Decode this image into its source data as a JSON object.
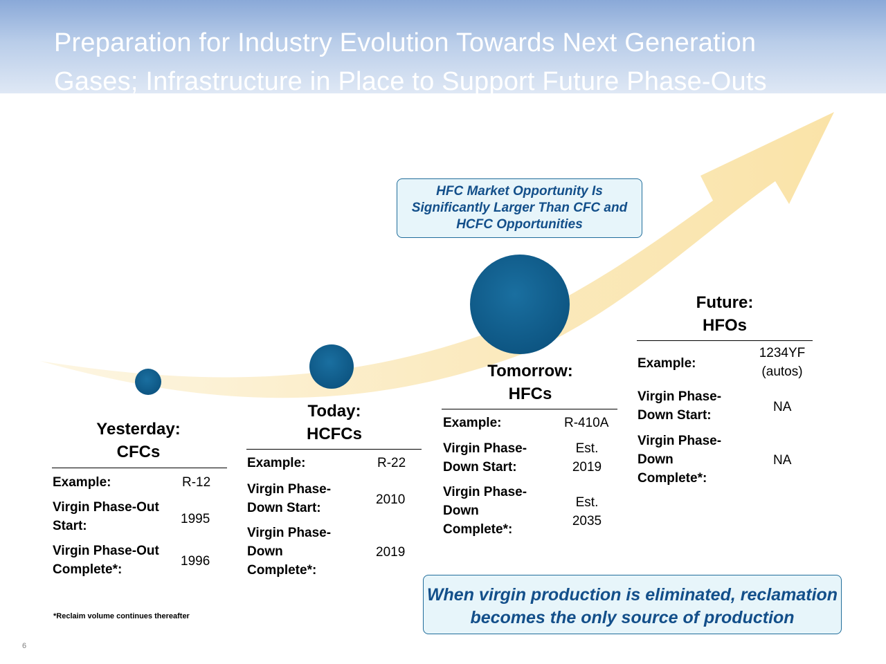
{
  "title": {
    "line1": "Preparation for Industry Evolution Towards Next Generation",
    "line2": "Gases; Infrastructure in Place to Support Future Phase-Outs"
  },
  "callout_top": {
    "line1": "HFC Market Opportunity Is",
    "line2": "Significantly Larger Than CFC and",
    "line3": "HCFC Opportunities"
  },
  "callout_bottom": {
    "line1": "When virgin production is eliminated, reclamation",
    "line2": "becomes the only source of production"
  },
  "yesterday": {
    "heading1": "Yesterday:",
    "heading2": "CFCs",
    "example_label": "Example:",
    "example_value": "R-12",
    "start_label1": "Virgin Phase-Out",
    "start_label2": "Start:",
    "start_value": "1995",
    "complete_label1": "Virgin Phase-Out",
    "complete_label2": "Complete*:",
    "complete_value": "1996"
  },
  "today": {
    "heading1": "Today:",
    "heading2": "HCFCs",
    "example_label": "Example:",
    "example_value": "R-22",
    "start_label1": "Virgin Phase-",
    "start_label2": "Down Start:",
    "start_value": "2010",
    "complete_label1": "Virgin Phase-",
    "complete_label2": "Down",
    "complete_label3": "Complete*:",
    "complete_value": "2019"
  },
  "tomorrow": {
    "heading1": "Tomorrow:",
    "heading2": "HFCs",
    "example_label": "Example:",
    "example_value": "R-410A",
    "start_label1": "Virgin Phase-",
    "start_label2": "Down Start:",
    "start_value1": "Est.",
    "start_value2": "2019",
    "complete_label1": "Virgin Phase-",
    "complete_label2": "Down",
    "complete_label3": "Complete*:",
    "complete_value1": "Est.",
    "complete_value2": "2035"
  },
  "future": {
    "heading1": "Future:",
    "heading2": "HFOs",
    "example_label": "Example:",
    "example_value1": "1234YF",
    "example_value2": "(autos)",
    "start_label1": "Virgin Phase-",
    "start_label2": "Down Start:",
    "start_value": "NA",
    "complete_label1": "Virgin Phase-",
    "complete_label2": "Down",
    "complete_label3": "Complete*:",
    "complete_value": "NA"
  },
  "footnote": "*Reclaim volume continues thereafter",
  "page_number": "6",
  "colors": {
    "circle": "#0f5f8c",
    "arrow": "#fbe7b4",
    "callout_text": "#134f8a"
  }
}
